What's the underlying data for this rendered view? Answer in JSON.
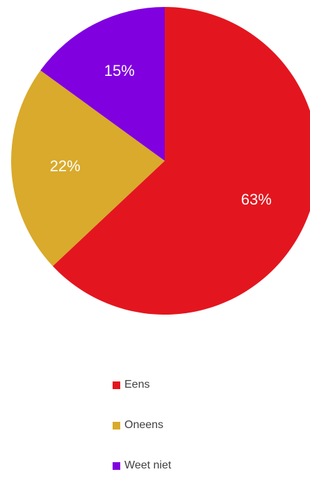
{
  "chart_data": {
    "type": "pie",
    "start_angle_deg": 0,
    "direction": "clockwise",
    "slices": [
      {
        "name": "Eens",
        "value": 63,
        "label": "63%",
        "color": "#e3161f"
      },
      {
        "name": "Oneens",
        "value": 22,
        "label": "22%",
        "color": "#d9aa2b"
      },
      {
        "name": "Weet niet",
        "value": 15,
        "label": "15%",
        "color": "#8000e0"
      }
    ],
    "legend_position": "bottom"
  }
}
